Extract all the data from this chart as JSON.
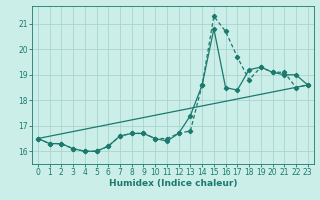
{
  "xlabel": "Humidex (Indice chaleur)",
  "background_color": "#cceee8",
  "grid_color": "#aad4ce",
  "line_color": "#1a7a6e",
  "xlim": [
    -0.5,
    23.5
  ],
  "ylim": [
    15.5,
    21.7
  ],
  "yticks": [
    16,
    17,
    18,
    19,
    20,
    21
  ],
  "xticks": [
    0,
    1,
    2,
    3,
    4,
    5,
    6,
    7,
    8,
    9,
    10,
    11,
    12,
    13,
    14,
    15,
    16,
    17,
    18,
    19,
    20,
    21,
    22,
    23
  ],
  "series1_x": [
    0,
    1,
    2,
    3,
    4,
    5,
    6,
    7,
    8,
    9,
    10,
    11,
    12,
    13,
    14,
    15,
    16,
    17,
    18,
    19,
    20,
    21,
    22,
    23
  ],
  "series1_y": [
    16.5,
    16.3,
    16.3,
    16.1,
    16.0,
    16.0,
    16.2,
    16.6,
    16.7,
    16.7,
    16.5,
    16.5,
    16.7,
    16.8,
    18.6,
    21.3,
    20.7,
    19.7,
    18.8,
    19.3,
    19.1,
    19.1,
    18.5,
    18.6
  ],
  "series2_x": [
    0,
    1,
    2,
    3,
    4,
    5,
    6,
    7,
    8,
    9,
    10,
    11,
    12,
    13,
    14,
    15,
    16,
    17,
    18,
    19,
    20,
    21,
    22,
    23
  ],
  "series2_y": [
    16.5,
    16.3,
    16.3,
    16.1,
    16.0,
    16.0,
    16.2,
    16.6,
    16.7,
    16.7,
    16.5,
    16.4,
    16.7,
    17.4,
    18.6,
    20.8,
    18.5,
    18.4,
    19.2,
    19.3,
    19.1,
    19.0,
    19.0,
    18.6
  ],
  "series3_x": [
    0,
    23
  ],
  "series3_y": [
    16.5,
    18.6
  ]
}
